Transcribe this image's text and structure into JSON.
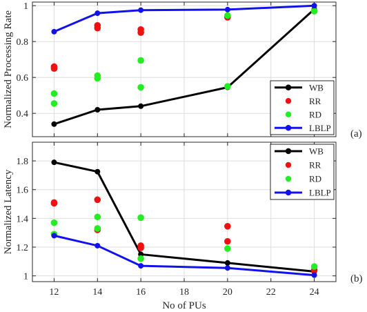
{
  "chart_data": [
    {
      "type": "line",
      "panel_label": "(a)",
      "ylabel": "Normalized Processing Rate",
      "xlabel": "",
      "xlim": [
        11,
        25
      ],
      "ylim": [
        0.27,
        1.02
      ],
      "xticks": [
        12,
        14,
        16,
        18,
        20,
        22,
        24
      ],
      "yticks": [
        0.4,
        0.6,
        0.8,
        1.0
      ],
      "ytick_labels": [
        "0.4",
        "0.6",
        "0.8",
        "1"
      ],
      "x_tick_labels_shown": false,
      "grid": true,
      "legend_position": "bottom-right",
      "series": [
        {
          "name": "WB",
          "mode": "line+markers",
          "color": "#000000",
          "x": [
            12,
            14,
            16,
            20,
            24
          ],
          "y": [
            0.34,
            0.42,
            0.44,
            0.545,
            0.98
          ]
        },
        {
          "name": "RR",
          "mode": "markers",
          "color": "#ee1111",
          "x": [
            12,
            12,
            14,
            14,
            16,
            16,
            20,
            20,
            24
          ],
          "y": [
            0.66,
            0.65,
            0.89,
            0.875,
            0.867,
            0.85,
            0.935,
            0.94,
            0.97
          ]
        },
        {
          "name": "RD",
          "mode": "markers",
          "color": "#22ee22",
          "x": [
            12,
            12,
            14,
            14,
            16,
            16,
            20,
            20,
            24
          ],
          "y": [
            0.51,
            0.455,
            0.61,
            0.595,
            0.695,
            0.545,
            0.55,
            0.945,
            0.97
          ]
        },
        {
          "name": "LBLP",
          "mode": "line+markers",
          "color": "#1111ee",
          "x": [
            12,
            14,
            16,
            20,
            24
          ],
          "y": [
            0.855,
            0.958,
            0.975,
            0.978,
            1.0
          ]
        }
      ]
    },
    {
      "type": "line",
      "panel_label": "(b)",
      "ylabel": "Normalized Latency",
      "xlabel": "No of PUs",
      "xlim": [
        11,
        25
      ],
      "ylim": [
        0.96,
        1.93
      ],
      "xticks": [
        12,
        14,
        16,
        18,
        20,
        22,
        24
      ],
      "xtick_labels": [
        "12",
        "14",
        "16",
        "18",
        "20",
        "22",
        "24"
      ],
      "yticks": [
        1.0,
        1.2,
        1.4,
        1.6,
        1.8
      ],
      "ytick_labels": [
        "1",
        "1.2",
        "1.4",
        "1.6",
        "1.8"
      ],
      "x_tick_labels_shown": true,
      "grid": true,
      "legend_position": "top-right",
      "series": [
        {
          "name": "WB",
          "mode": "line+markers",
          "color": "#000000",
          "x": [
            12,
            14,
            16,
            20,
            24
          ],
          "y": [
            1.79,
            1.725,
            1.15,
            1.09,
            1.03
          ]
        },
        {
          "name": "RR",
          "mode": "markers",
          "color": "#ee1111",
          "x": [
            12,
            12,
            14,
            14,
            16,
            16,
            20,
            20,
            24
          ],
          "y": [
            1.51,
            1.505,
            1.53,
            1.32,
            1.21,
            1.195,
            1.345,
            1.24,
            1.04
          ]
        },
        {
          "name": "RD",
          "mode": "markers",
          "color": "#22ee22",
          "x": [
            12,
            12,
            14,
            14,
            16,
            16,
            20,
            24
          ],
          "y": [
            1.37,
            1.29,
            1.41,
            1.33,
            1.405,
            1.12,
            1.19,
            1.065
          ]
        },
        {
          "name": "LBLP",
          "mode": "line+markers",
          "color": "#1111ee",
          "x": [
            12,
            14,
            16,
            20,
            24
          ],
          "y": [
            1.28,
            1.21,
            1.07,
            1.055,
            1.005
          ]
        }
      ]
    }
  ]
}
